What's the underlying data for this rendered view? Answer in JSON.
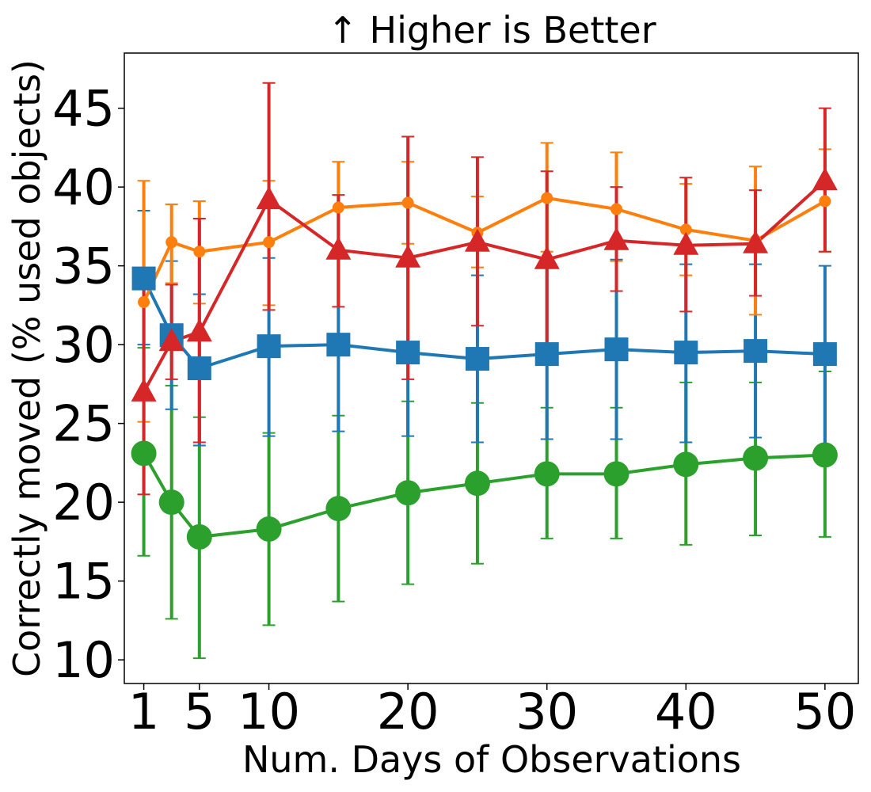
{
  "chart_data": {
    "type": "line",
    "title": "↑  Higher is Better",
    "xlabel": "Num. Days of Observations",
    "ylabel": "Correctly moved (% used objects)",
    "xlim": [
      -0.4,
      52.4
    ],
    "ylim": [
      8.5,
      48.5
    ],
    "x_ticks": [
      1,
      5,
      10,
      20,
      30,
      40,
      50
    ],
    "y_ticks": [
      10,
      15,
      20,
      25,
      30,
      35,
      40,
      45
    ],
    "x": [
      1,
      3,
      5,
      10,
      15,
      20,
      25,
      30,
      35,
      40,
      45,
      50
    ],
    "grid": false,
    "legend": "none",
    "series": [
      {
        "name": "green",
        "color": "#2ca02c",
        "marker": "circle-large",
        "values": [
          23.1,
          20.0,
          17.8,
          18.3,
          19.6,
          20.6,
          21.2,
          21.8,
          21.8,
          22.4,
          22.8,
          23.0
        ],
        "err_low": [
          16.6,
          12.6,
          10.1,
          12.2,
          13.7,
          14.8,
          16.1,
          17.7,
          17.7,
          17.3,
          17.9,
          17.8
        ],
        "err_high": [
          29.8,
          27.4,
          25.4,
          24.4,
          25.5,
          26.4,
          26.3,
          26.0,
          26.0,
          27.6,
          27.6,
          28.3
        ]
      },
      {
        "name": "blue",
        "color": "#1f77b4",
        "marker": "square",
        "values": [
          34.2,
          30.6,
          28.5,
          29.9,
          30.0,
          29.5,
          29.1,
          29.4,
          29.7,
          29.5,
          29.6,
          29.4
        ],
        "err_low": [
          30.0,
          25.9,
          23.6,
          24.2,
          24.5,
          24.2,
          23.8,
          24.0,
          24.0,
          23.8,
          24.1,
          23.6
        ],
        "err_high": [
          38.5,
          35.3,
          33.2,
          35.5,
          35.6,
          35.0,
          34.4,
          34.9,
          35.4,
          35.1,
          35.1,
          35.0
        ]
      },
      {
        "name": "orange",
        "color": "#ff7f0e",
        "marker": "circle-small",
        "values": [
          32.7,
          36.5,
          35.9,
          36.5,
          38.7,
          39.0,
          37.1,
          39.3,
          38.6,
          37.3,
          36.6,
          39.1
        ],
        "err_low": [
          25.1,
          33.9,
          32.6,
          32.5,
          35.6,
          36.4,
          34.9,
          35.9,
          35.3,
          34.4,
          31.9,
          35.9
        ],
        "err_high": [
          40.4,
          38.9,
          39.1,
          40.4,
          41.6,
          41.6,
          39.4,
          42.8,
          42.2,
          40.2,
          41.3,
          42.4
        ]
      },
      {
        "name": "red",
        "color": "#d62728",
        "marker": "triangle",
        "values": [
          27.0,
          30.2,
          30.8,
          39.2,
          36.0,
          35.5,
          36.5,
          35.4,
          36.6,
          36.3,
          36.4,
          40.4
        ],
        "err_low": [
          20.5,
          27.8,
          23.8,
          32.2,
          32.4,
          27.8,
          31.2,
          29.2,
          33.4,
          32.1,
          33.1,
          35.9
        ],
        "err_high": [
          33.6,
          33.8,
          38.0,
          46.6,
          39.5,
          43.2,
          41.9,
          41.0,
          40.0,
          40.6,
          39.8,
          45.0
        ]
      }
    ]
  }
}
